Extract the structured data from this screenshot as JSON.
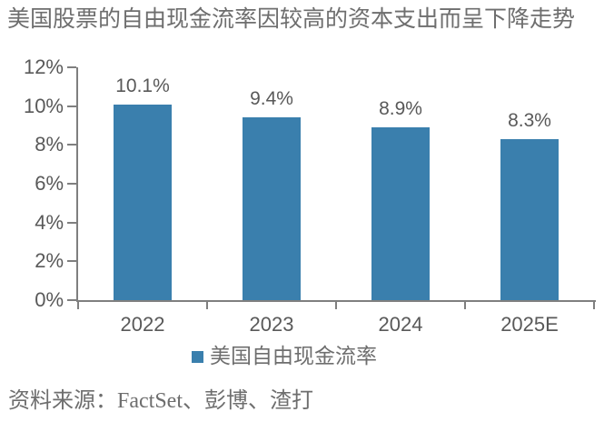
{
  "title": "美国股票的自由现金流率因较高的资本支出而呈下降走势",
  "legend": {
    "label": "美国自由现金流率"
  },
  "source": {
    "text": "资料来源：FactSet、彭博、渣打"
  },
  "colors": {
    "bar": "#3A7FAD",
    "axis": "#7F7F7F",
    "numeric_text": "#595959",
    "serif_text": "#6E6E6E"
  },
  "chart_data": {
    "type": "bar",
    "title": "美国股票的自由现金流率因较高的资本支出而呈下降走势",
    "categories": [
      "2022",
      "2023",
      "2024",
      "2025E"
    ],
    "values": [
      10.1,
      9.4,
      8.9,
      8.3
    ],
    "value_labels": [
      "10.1%",
      "9.4%",
      "8.9%",
      "8.3%"
    ],
    "series_name": "美国自由现金流率",
    "xlabel": "",
    "ylabel": "",
    "ylim": [
      0,
      12
    ],
    "ytick_step": 2,
    "ytick_labels": [
      "0%",
      "2%",
      "4%",
      "6%",
      "8%",
      "10%",
      "12%"
    ],
    "grid": false,
    "legend_position": "bottom",
    "bar_color": "#3A7FAD"
  }
}
